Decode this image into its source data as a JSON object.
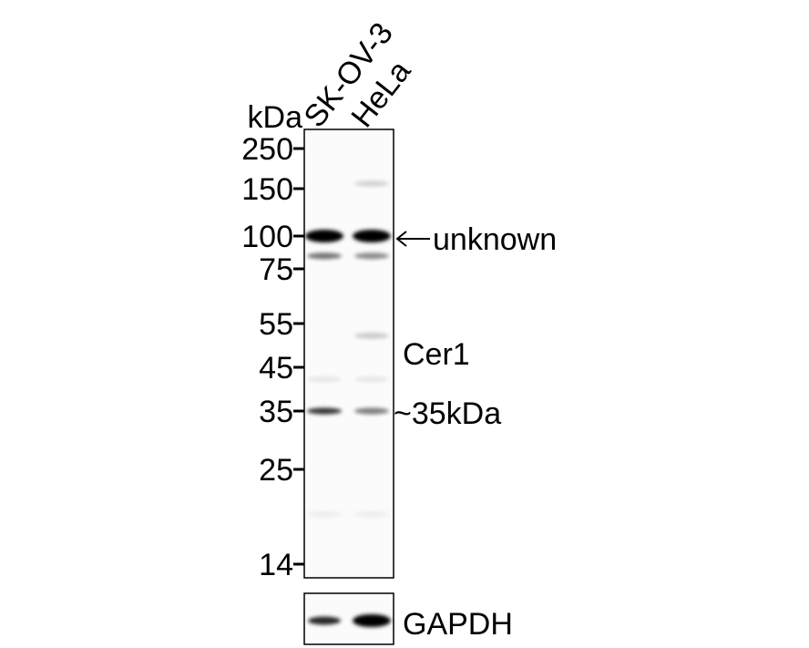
{
  "unit_label": "kDa",
  "lanes": [
    "SK-OV-3",
    "HeLa"
  ],
  "markers": [
    "250",
    "150",
    "100",
    "75",
    "55",
    "45",
    "35",
    "25",
    "14"
  ],
  "annotations": {
    "unknown": "unknown",
    "target": "Cer1",
    "target_size": "~35kDa",
    "loading_control": "GAPDH"
  },
  "bands": [
    {
      "lane": 0,
      "kda": 100,
      "intensity": 1.0
    },
    {
      "lane": 1,
      "kda": 100,
      "intensity": 1.0
    },
    {
      "lane": 0,
      "kda": 84,
      "intensity": 0.55
    },
    {
      "lane": 1,
      "kda": 84,
      "intensity": 0.45
    },
    {
      "lane": 1,
      "kda": 160,
      "intensity": 0.15
    },
    {
      "lane": 1,
      "kda": 52,
      "intensity": 0.18
    },
    {
      "lane": 0,
      "kda": 42,
      "intensity": 0.08
    },
    {
      "lane": 1,
      "kda": 42,
      "intensity": 0.08
    },
    {
      "lane": 0,
      "kda": 35,
      "intensity": 0.8
    },
    {
      "lane": 1,
      "kda": 35,
      "intensity": 0.5
    },
    {
      "lane": 0,
      "kda": 19,
      "intensity": 0.05
    },
    {
      "lane": 1,
      "kda": 19,
      "intensity": 0.05
    }
  ],
  "gapdh": [
    {
      "lane": 0,
      "intensity": 0.85
    },
    {
      "lane": 1,
      "intensity": 1.0
    }
  ]
}
